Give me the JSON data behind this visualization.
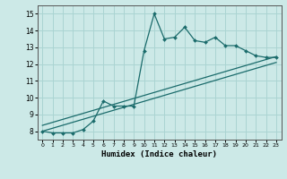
{
  "title": "",
  "xlabel": "Humidex (Indice chaleur)",
  "xlim": [
    -0.5,
    23.5
  ],
  "ylim": [
    7.5,
    15.5
  ],
  "xticks": [
    0,
    1,
    2,
    3,
    4,
    5,
    6,
    7,
    8,
    9,
    10,
    11,
    12,
    13,
    14,
    15,
    16,
    17,
    18,
    19,
    20,
    21,
    22,
    23
  ],
  "yticks": [
    8,
    9,
    10,
    11,
    12,
    13,
    14,
    15
  ],
  "bg_color": "#cce9e7",
  "grid_color": "#aad4d2",
  "line_color": "#1a6b6b",
  "line1_x": [
    0,
    1,
    2,
    3,
    4,
    5,
    6,
    7,
    8,
    9,
    10,
    11,
    12,
    13,
    14,
    15,
    16,
    17,
    18,
    19,
    20,
    21,
    22,
    23
  ],
  "line1_y": [
    8.0,
    7.9,
    7.9,
    7.9,
    8.1,
    8.6,
    9.8,
    9.5,
    9.5,
    9.5,
    12.8,
    15.0,
    13.5,
    13.6,
    14.2,
    13.4,
    13.3,
    13.6,
    13.1,
    13.1,
    12.8,
    12.5,
    12.4,
    12.4
  ],
  "line2_x": [
    0,
    23
  ],
  "line2_y": [
    8.0,
    12.1
  ],
  "line3_x": [
    0,
    23
  ],
  "line3_y": [
    8.35,
    12.45
  ]
}
